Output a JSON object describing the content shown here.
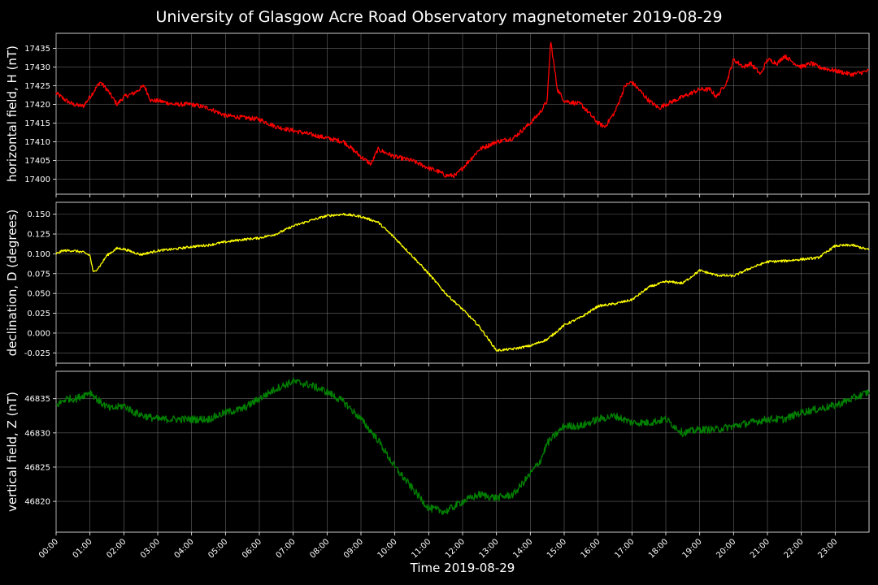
{
  "title": "University of Glasgow Acre Road Observatory magnetometer 2019-08-29",
  "xlabel": "Time 2019-08-29",
  "chart_data": {
    "type": "line",
    "x_ticks": [
      "00:00",
      "01:00",
      "02:00",
      "03:00",
      "04:00",
      "05:00",
      "06:00",
      "07:00",
      "08:00",
      "09:00",
      "10:00",
      "11:00",
      "12:00",
      "13:00",
      "14:00",
      "15:00",
      "16:00",
      "17:00",
      "18:00",
      "19:00",
      "20:00",
      "21:00",
      "22:00",
      "23:00"
    ],
    "xlim": [
      0,
      24
    ],
    "grid": true,
    "panels": [
      {
        "ylabel": "horizontal field, H (nT)",
        "color": "#ff0000",
        "ylim": [
          17396,
          17439
        ],
        "yticks": [
          17400,
          17405,
          17410,
          17415,
          17420,
          17425,
          17430,
          17435
        ],
        "tick_decimals": 0,
        "noise": 0.6,
        "x": [
          0,
          0.3,
          0.5,
          0.8,
          1.0,
          1.3,
          1.5,
          1.8,
          2.0,
          2.3,
          2.6,
          2.8,
          3.0,
          3.5,
          4.0,
          4.5,
          5.0,
          5.5,
          6.0,
          6.5,
          7.0,
          7.5,
          8.0,
          8.5,
          9.0,
          9.3,
          9.5,
          10.0,
          10.5,
          11.0,
          11.3,
          11.5,
          11.8,
          12.0,
          12.3,
          12.5,
          13.0,
          13.5,
          14.0,
          14.3,
          14.5,
          14.6,
          14.8,
          15.0,
          15.5,
          16.0,
          16.2,
          16.5,
          16.8,
          17.0,
          17.5,
          17.8,
          18.0,
          18.5,
          19.0,
          19.3,
          19.5,
          19.8,
          20.0,
          20.3,
          20.5,
          20.8,
          21.0,
          21.3,
          21.5,
          21.8,
          22.0,
          22.3,
          22.5,
          23.0,
          23.5,
          24.0
        ],
        "y": [
          17423,
          17421,
          17420,
          17419.5,
          17422,
          17426,
          17424,
          17420,
          17422,
          17423,
          17425,
          17421,
          17421,
          17420,
          17420,
          17419,
          17417,
          17416.5,
          17416,
          17414,
          17413,
          17412,
          17411,
          17410,
          17406,
          17404,
          17408,
          17406,
          17405,
          17403,
          17402,
          17401,
          17401,
          17403,
          17406,
          17408,
          17410,
          17411,
          17415,
          17418,
          17421,
          17437,
          17424,
          17421,
          17420,
          17415,
          17414,
          17418,
          17425,
          17426,
          17421,
          17419,
          17420,
          17422,
          17424,
          17424,
          17422,
          17426,
          17432,
          17430,
          17431,
          17428,
          17432,
          17431,
          17433,
          17431,
          17430,
          17431,
          17430,
          17429,
          17428,
          17429
        ]
      },
      {
        "ylabel": "declination, D (degrees)",
        "color": "#ffff00",
        "ylim": [
          -0.038,
          0.165
        ],
        "yticks": [
          -0.025,
          0.0,
          0.025,
          0.05,
          0.075,
          0.1,
          0.125,
          0.15
        ],
        "tick_decimals": 3,
        "noise": 0.0015,
        "x": [
          0,
          0.2,
          0.5,
          0.8,
          1.0,
          1.1,
          1.3,
          1.5,
          1.8,
          2.0,
          2.5,
          3.0,
          3.5,
          4.0,
          4.5,
          5.0,
          5.5,
          6.0,
          6.5,
          7.0,
          7.5,
          8.0,
          8.5,
          9.0,
          9.5,
          10.0,
          10.5,
          11.0,
          11.5,
          12.0,
          12.5,
          13.0,
          13.5,
          14.0,
          14.5,
          15.0,
          15.5,
          16.0,
          16.5,
          17.0,
          17.5,
          18.0,
          18.5,
          19.0,
          19.5,
          20.0,
          20.5,
          21.0,
          21.5,
          22.0,
          22.5,
          23.0,
          23.5,
          24.0
        ],
        "y": [
          0.1,
          0.104,
          0.104,
          0.102,
          0.098,
          0.076,
          0.085,
          0.098,
          0.107,
          0.106,
          0.099,
          0.104,
          0.106,
          0.109,
          0.111,
          0.115,
          0.118,
          0.12,
          0.125,
          0.135,
          0.142,
          0.148,
          0.15,
          0.147,
          0.14,
          0.12,
          0.098,
          0.075,
          0.05,
          0.03,
          0.008,
          -0.022,
          -0.02,
          -0.016,
          -0.008,
          0.01,
          0.02,
          0.034,
          0.037,
          0.042,
          0.058,
          0.065,
          0.063,
          0.079,
          0.073,
          0.072,
          0.082,
          0.09,
          0.091,
          0.093,
          0.095,
          0.11,
          0.111,
          0.105
        ]
      },
      {
        "ylabel": "vertical field, Z (nT)",
        "color": "#008000",
        "ylim": [
          46815.5,
          46839
        ],
        "yticks": [
          46820,
          46825,
          46830,
          46835
        ],
        "tick_decimals": 0,
        "noise": 0.55,
        "x": [
          0,
          0.3,
          0.6,
          1.0,
          1.3,
          1.6,
          2.0,
          2.3,
          2.6,
          3.0,
          3.5,
          4.0,
          4.5,
          5.0,
          5.5,
          6.0,
          6.5,
          7.0,
          7.5,
          8.0,
          8.5,
          9.0,
          9.5,
          10.0,
          10.5,
          11.0,
          11.5,
          12.0,
          12.5,
          13.0,
          13.5,
          14.0,
          14.3,
          14.5,
          14.8,
          15.0,
          15.5,
          16.0,
          16.5,
          17.0,
          17.5,
          18.0,
          18.5,
          19.0,
          19.5,
          20.0,
          20.5,
          21.0,
          21.5,
          22.0,
          22.5,
          23.0,
          23.5,
          24.0
        ],
        "y": [
          46834,
          46835,
          46835,
          46836,
          46834.5,
          46833.5,
          46834,
          46833,
          46832.5,
          46832,
          46832,
          46832,
          46832,
          46833,
          46833.5,
          46835,
          46836.5,
          46837.5,
          46837,
          46836,
          46834.5,
          46832,
          46829,
          46825,
          46822,
          46819,
          46818.5,
          46820,
          46821,
          46820.5,
          46821,
          46824,
          46826,
          46828.5,
          46830,
          46831,
          46831,
          46832,
          46832.5,
          46831.5,
          46831.5,
          46832,
          46830,
          46830.5,
          46830.5,
          46831,
          46831.5,
          46832,
          46832,
          46833,
          46833.5,
          46834,
          46835,
          46836
        ]
      }
    ]
  }
}
